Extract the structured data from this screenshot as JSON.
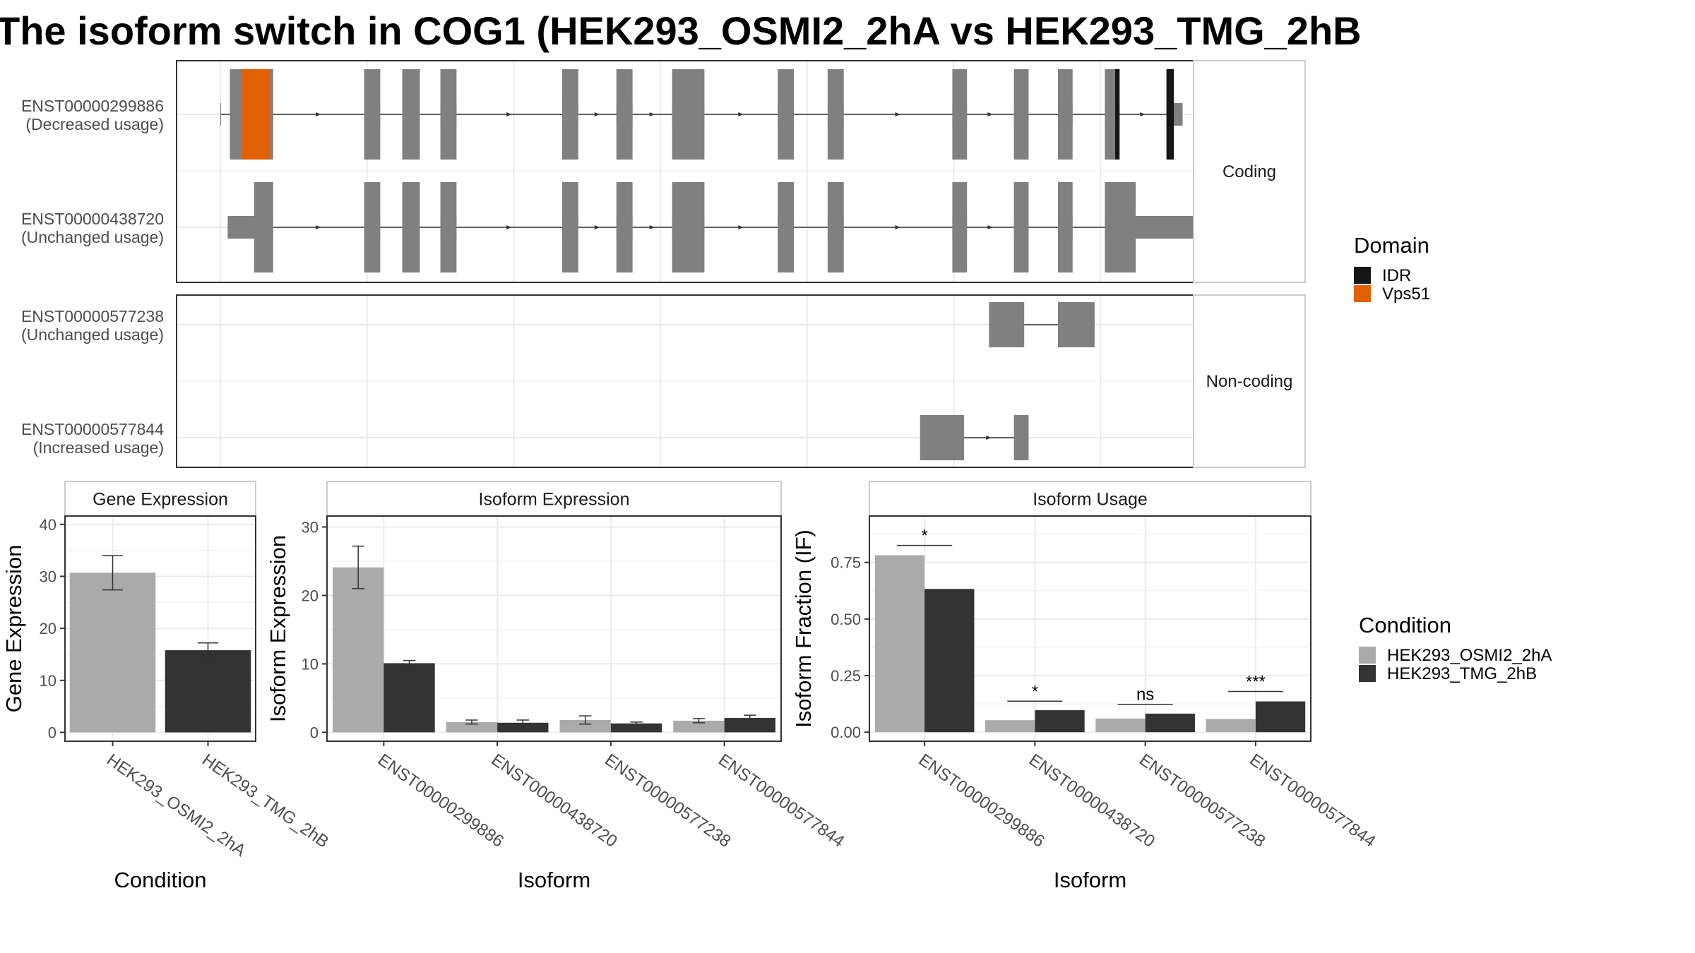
{
  "title": "The isoform switch in COG1 (HEK293_OSMI2_2hA vs HEK293_TMG_2hB",
  "colors": {
    "cond_a": "#AAAAAA",
    "cond_b": "#333333",
    "exon": "#808080",
    "idr": "#161616",
    "vps51": "#E16000"
  },
  "chart_data": [
    {
      "type": "gene-structure",
      "name": "transcript-structures",
      "facets": [
        {
          "label": "Coding",
          "transcripts": [
            {
              "id": "ENST00000299886",
              "usage_label": "(Decreased usage)",
              "exons": [
                [
                  0,
                  0.5
                ],
                [
                  6.5,
                  36
                ],
                [
                  98,
                  109
                ],
                [
                  124,
                  136
                ],
                [
                  150,
                  161
                ],
                [
                  233,
                  244
                ],
                [
                  270,
                  281
                ],
                [
                  308,
                  330
                ],
                [
                  380,
                  391
                ],
                [
                  414,
                  425
                ],
                [
                  499,
                  509
                ],
                [
                  541,
                  551
                ],
                [
                  571,
                  581
                ],
                [
                  603,
                  613
                ],
                [
                  645,
                  656
                ]
              ],
              "cds": [
                [
                  6.5,
                  36
                ],
                [
                  98,
                  109
                ],
                [
                  124,
                  136
                ],
                [
                  150,
                  161
                ],
                [
                  233,
                  244
                ],
                [
                  270,
                  281
                ],
                [
                  308,
                  330
                ],
                [
                  380,
                  391
                ],
                [
                  414,
                  425
                ],
                [
                  499,
                  509
                ],
                [
                  541,
                  551
                ],
                [
                  571,
                  581
                ],
                [
                  603,
                  613
                ],
                [
                  645,
                  650
                ]
              ],
              "domains": [
                {
                  "name": "Vps51",
                  "start": 14,
                  "end": 34
                },
                {
                  "name": "IDR",
                  "start": 610,
                  "end": 613
                },
                {
                  "name": "IDR",
                  "start": 645,
                  "end": 650
                }
              ]
            },
            {
              "id": "ENST00000438720",
              "usage_label": "(Unchanged usage)",
              "exons": [
                [
                  5,
                  36
                ],
                [
                  98,
                  109
                ],
                [
                  124,
                  136
                ],
                [
                  150,
                  161
                ],
                [
                  233,
                  244
                ],
                [
                  270,
                  281
                ],
                [
                  308,
                  330
                ],
                [
                  380,
                  391
                ],
                [
                  414,
                  425
                ],
                [
                  499,
                  509
                ],
                [
                  541,
                  551
                ],
                [
                  571,
                  581
                ],
                [
                  603,
                  676
                ]
              ],
              "cds": [
                [
                  23,
                  36
                ],
                [
                  98,
                  109
                ],
                [
                  124,
                  136
                ],
                [
                  150,
                  161
                ],
                [
                  233,
                  244
                ],
                [
                  270,
                  281
                ],
                [
                  308,
                  330
                ],
                [
                  380,
                  391
                ],
                [
                  414,
                  425
                ],
                [
                  499,
                  509
                ],
                [
                  541,
                  551
                ],
                [
                  571,
                  581
                ],
                [
                  603,
                  624
                ]
              ],
              "domains": []
            }
          ]
        },
        {
          "label": "Non-coding",
          "transcripts": [
            {
              "id": "ENST00000577238",
              "usage_label": "(Unchanged usage)",
              "exons": [
                [
                  524,
                  548
                ],
                [
                  571,
                  596
                ]
              ],
              "cds": [],
              "domains": []
            },
            {
              "id": "ENST00000577844",
              "usage_label": "(Increased usage)",
              "exons": [
                [
                  477,
                  507
                ],
                [
                  541,
                  551
                ]
              ],
              "cds": [],
              "domains": []
            }
          ]
        }
      ],
      "legend_title": "Domain",
      "legend": [
        {
          "name": "IDR",
          "color": "#161616"
        },
        {
          "name": "Vps51",
          "color": "#E16000"
        }
      ]
    },
    {
      "type": "bar",
      "name": "gene-expression",
      "title": "Gene Expression",
      "xlabel": "Condition",
      "ylabel": "Gene Expression",
      "categories": [
        "HEK293_OSMI2_2hA",
        "HEK293_TMG_2hB"
      ],
      "values": [
        30.7,
        15.8
      ],
      "errors": [
        [
          27.4,
          34.0
        ],
        [
          14.4,
          17.2
        ]
      ],
      "yticks": [
        0,
        10,
        20,
        30,
        40
      ],
      "ylim": [
        -1.7,
        41.6
      ]
    },
    {
      "type": "bar",
      "name": "isoform-expression",
      "title": "Isoform Expression",
      "xlabel": "Isoform",
      "ylabel": "Isoform Expression",
      "categories": [
        "ENST00000299886",
        "ENST00000438720",
        "ENST00000577238",
        "ENST00000577844"
      ],
      "series": [
        {
          "name": "HEK293_OSMI2_2hA",
          "values": [
            24.1,
            1.5,
            1.8,
            1.7
          ],
          "errors": [
            [
              21.0,
              27.2
            ],
            [
              1.2,
              1.8
            ],
            [
              1.2,
              2.4
            ],
            [
              1.4,
              2.0
            ]
          ]
        },
        {
          "name": "HEK293_TMG_2hB",
          "values": [
            10.1,
            1.4,
            1.3,
            2.1
          ],
          "errors": [
            [
              9.7,
              10.5
            ],
            [
              1.0,
              1.8
            ],
            [
              1.1,
              1.5
            ],
            [
              1.7,
              2.5
            ]
          ]
        }
      ],
      "yticks": [
        0,
        10,
        20,
        30
      ],
      "ylim": [
        -1.3,
        31.6
      ]
    },
    {
      "type": "bar",
      "name": "isoform-usage",
      "title": "Isoform Usage",
      "xlabel": "Isoform",
      "ylabel": "Isoform Fraction (IF)",
      "categories": [
        "ENST00000299886",
        "ENST00000438720",
        "ENST00000577238",
        "ENST00000577844"
      ],
      "series": [
        {
          "name": "HEK293_OSMI2_2hA",
          "values": [
            0.782,
            0.053,
            0.06,
            0.058
          ]
        },
        {
          "name": "HEK293_TMG_2hB",
          "values": [
            0.633,
            0.097,
            0.082,
            0.136
          ]
        }
      ],
      "significance": [
        {
          "label": "*",
          "y": 0.825
        },
        {
          "label": "*",
          "y": 0.137
        },
        {
          "label": "ns",
          "y": 0.123
        },
        {
          "label": "***",
          "y": 0.18
        }
      ],
      "yticks": [
        0,
        0.25,
        0.5,
        0.75
      ],
      "ytick_labels": [
        "0.00",
        "0.25",
        "0.50",
        "0.75"
      ],
      "ylim": [
        -0.04,
        0.955
      ]
    }
  ],
  "condition_legend": {
    "title": "Condition",
    "items": [
      {
        "name": "HEK293_OSMI2_2hA",
        "color": "#AAAAAA"
      },
      {
        "name": "HEK293_TMG_2hB",
        "color": "#333333"
      }
    ]
  }
}
